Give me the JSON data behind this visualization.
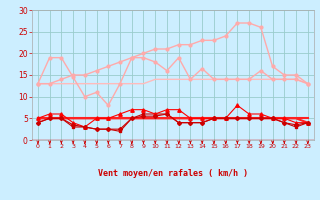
{
  "background_color": "#cceeff",
  "grid_color": "#99cccc",
  "xlabel": "Vent moyen/en rafales ( km/h )",
  "xlabel_color": "#cc0000",
  "tick_color": "#cc0000",
  "arrow_color": "#cc0000",
  "ylim": [
    0,
    30
  ],
  "yticks": [
    0,
    5,
    10,
    15,
    20,
    25,
    30
  ],
  "xlim": [
    -0.5,
    23.5
  ],
  "series": [
    {
      "y": [
        13,
        13,
        13,
        13,
        13,
        13,
        13,
        13,
        13,
        13,
        14,
        14,
        14,
        14,
        14,
        14,
        14,
        14,
        14,
        14,
        14,
        14,
        14,
        13
      ],
      "color": "#ffbbbb",
      "lw": 1.0,
      "marker": null,
      "ms": 0
    },
    {
      "y": [
        13,
        19,
        19,
        14.5,
        10,
        11,
        8,
        13,
        19,
        19,
        18,
        16,
        19,
        14,
        16.5,
        14,
        14,
        14,
        14,
        16,
        14,
        14,
        14,
        13
      ],
      "color": "#ffaaaa",
      "lw": 1.0,
      "marker": "o",
      "ms": 2
    },
    {
      "y": [
        13,
        13,
        14,
        15,
        15,
        16,
        17,
        18,
        19,
        20,
        21,
        21,
        22,
        22,
        23,
        23,
        24,
        27,
        27,
        26,
        17,
        15,
        15,
        13
      ],
      "color": "#ffaaaa",
      "lw": 1.0,
      "marker": "o",
      "ms": 2
    },
    {
      "y": [
        5,
        5,
        5,
        5,
        5,
        5,
        5,
        5,
        5,
        5,
        5,
        5,
        5,
        5,
        5,
        5,
        5,
        5,
        5,
        5,
        5,
        5,
        5,
        5
      ],
      "color": "#ff2222",
      "lw": 1.5,
      "marker": null,
      "ms": 0
    },
    {
      "y": [
        5,
        5,
        5,
        5,
        5,
        5,
        5,
        5,
        5,
        5,
        5,
        5,
        5,
        5,
        5,
        5,
        5,
        5,
        5,
        5,
        5,
        5,
        5,
        4
      ],
      "color": "#ff2222",
      "lw": 1.5,
      "marker": null,
      "ms": 0
    },
    {
      "y": [
        4,
        5,
        5,
        3,
        3,
        2.5,
        2.5,
        2,
        5,
        6,
        6,
        6,
        4,
        4,
        4,
        5,
        5,
        5,
        5,
        5,
        5,
        4,
        3,
        4
      ],
      "color": "#cc0000",
      "lw": 0.8,
      "marker": "s",
      "ms": 2
    },
    {
      "y": [
        5,
        6,
        6,
        4,
        3,
        5,
        5,
        6,
        7,
        7,
        6,
        7,
        7,
        5,
        5,
        5,
        5,
        8,
        6,
        6,
        5,
        5,
        4,
        4
      ],
      "color": "#ff0000",
      "lw": 0.8,
      "marker": "^",
      "ms": 2.5
    },
    {
      "y": [
        4,
        5,
        5,
        3.5,
        3,
        2.5,
        2.5,
        2.5,
        5,
        5.5,
        5.5,
        6,
        4,
        4,
        4,
        5,
        5,
        5,
        5,
        5,
        5,
        4,
        3.5,
        4
      ],
      "color": "#cc0000",
      "lw": 0.8,
      "marker": "D",
      "ms": 2
    }
  ]
}
